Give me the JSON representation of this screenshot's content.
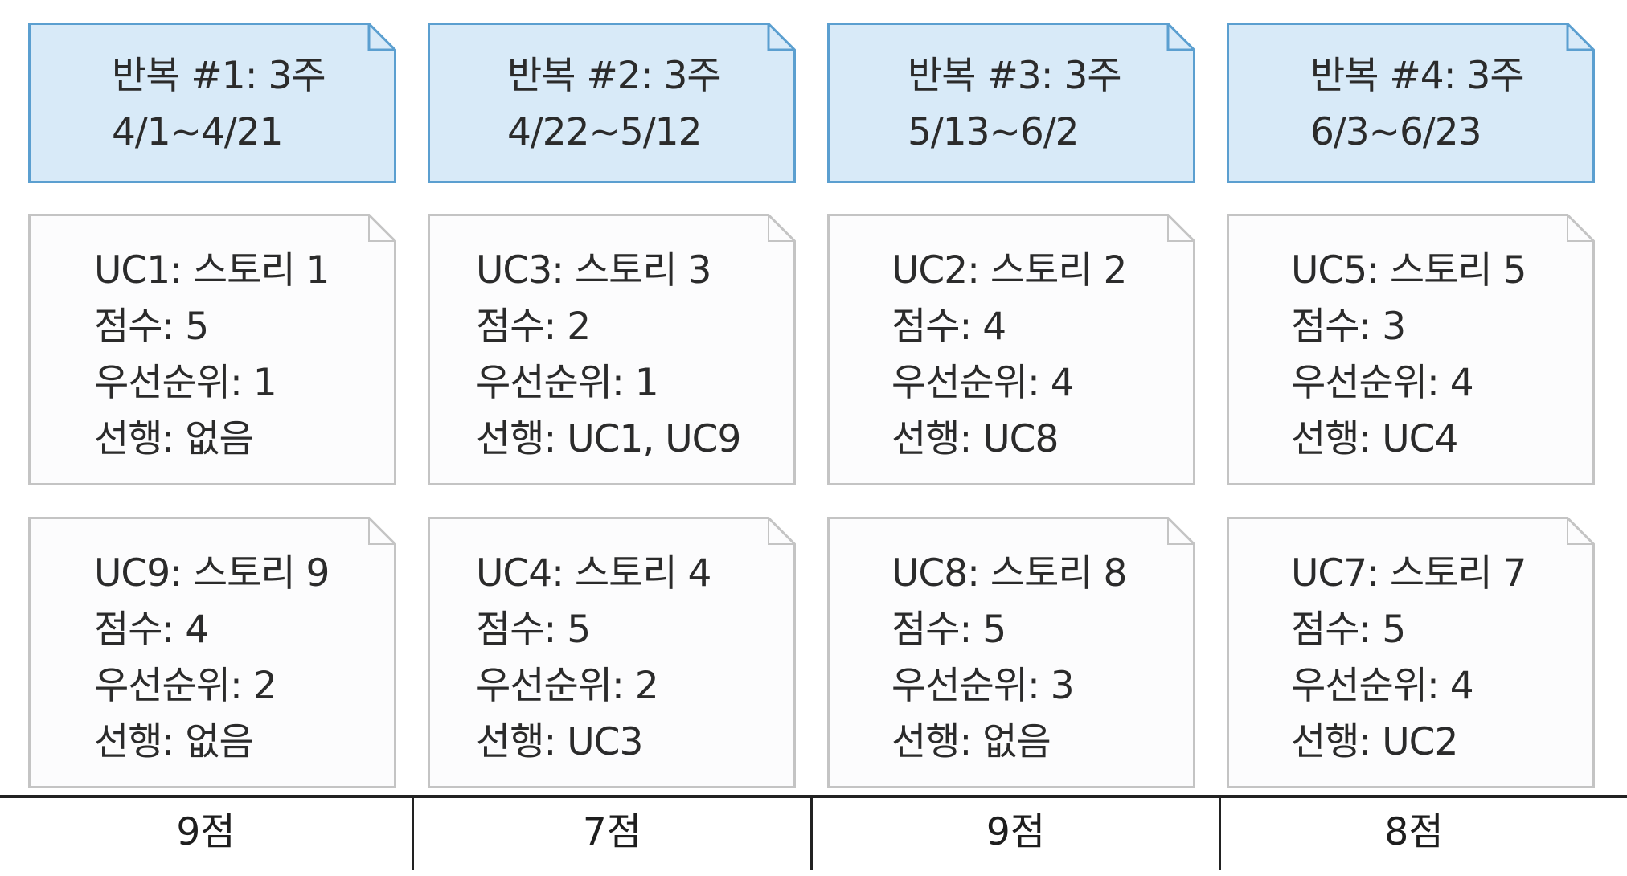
{
  "iterations": [
    {
      "title": "반복 #1: 3주",
      "dates": "4/1~4/21",
      "stories": [
        {
          "story": "UC1: 스토리 1",
          "points": "점수: 5",
          "priority": "우선순위: 1",
          "predecessor": "선행: 없음"
        },
        {
          "story": "UC9: 스토리 9",
          "points": "점수: 4",
          "priority": "우선순위: 2",
          "predecessor": "선행: 없음"
        }
      ],
      "total": "9점"
    },
    {
      "title": "반복 #2: 3주",
      "dates": "4/22~5/12",
      "stories": [
        {
          "story": "UC3: 스토리 3",
          "points": "점수: 2",
          "priority": "우선순위: 1",
          "predecessor": "선행: UC1, UC9"
        },
        {
          "story": "UC4: 스토리 4",
          "points": "점수: 5",
          "priority": "우선순위: 2",
          "predecessor": "선행: UC3"
        }
      ],
      "total": "7점"
    },
    {
      "title": "반복 #3: 3주",
      "dates": "5/13~6/2",
      "stories": [
        {
          "story": "UC2: 스토리 2",
          "points": "점수: 4",
          "priority": "우선순위: 4",
          "predecessor": "선행: UC8"
        },
        {
          "story": "UC8: 스토리 8",
          "points": "점수: 5",
          "priority": "우선순위: 3",
          "predecessor": "선행: 없음"
        }
      ],
      "total": "9점"
    },
    {
      "title": "반복 #4: 3주",
      "dates": "6/3~6/23",
      "stories": [
        {
          "story": "UC5: 스토리 5",
          "points": "점수: 3",
          "priority": "우선순위: 4",
          "predecessor": "선행: UC4"
        },
        {
          "story": "UC7: 스토리 7",
          "points": "점수: 5",
          "priority": "우선순위: 4",
          "predecessor": "선행: UC2"
        }
      ],
      "total": "8점"
    }
  ],
  "colors": {
    "header_fill": "#d8eaf8",
    "header_border": "#5b9fd0",
    "story_fill": "#fcfcfd",
    "story_border": "#c4c4c4",
    "text": "#2b2b2b",
    "rule": "#222222"
  }
}
